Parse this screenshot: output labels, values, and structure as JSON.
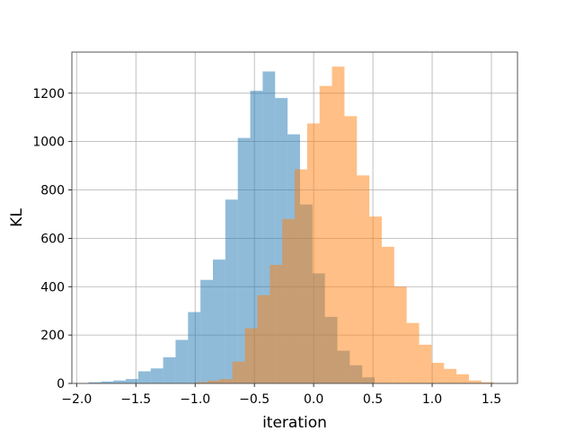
{
  "chart_data": {
    "type": "bar",
    "title": "",
    "xlabel": "iteration",
    "ylabel": "KL",
    "xlim": [
      -2.04,
      1.72
    ],
    "ylim": [
      0,
      1370
    ],
    "grid": true,
    "x_ticks": [
      -2.0,
      -1.5,
      -1.0,
      -0.5,
      0.0,
      0.5,
      1.0,
      1.5
    ],
    "x_tick_labels": [
      "−2.0",
      "−1.5",
      "−1.0",
      "−0.5",
      "0.0",
      "0.5",
      "1.0",
      "1.5"
    ],
    "y_ticks": [
      0,
      200,
      400,
      600,
      800,
      1000,
      1200
    ],
    "y_tick_labels": [
      "0",
      "200",
      "400",
      "600",
      "800",
      "1000",
      "1200"
    ],
    "series": [
      {
        "color": "#1f77b4",
        "opacity": 0.5,
        "bin_width": 0.105,
        "bin_starts": [
          -1.9,
          -1.795,
          -1.69,
          -1.585,
          -1.48,
          -1.375,
          -1.27,
          -1.165,
          -1.06,
          -0.955,
          -0.85,
          -0.745,
          -0.64,
          -0.535,
          -0.43,
          -0.325,
          -0.22,
          -0.115,
          -0.01,
          0.095,
          0.2,
          0.305,
          0.41
        ],
        "values": [
          5,
          8,
          12,
          18,
          50,
          62,
          108,
          180,
          295,
          428,
          512,
          760,
          1015,
          1210,
          1290,
          1180,
          1030,
          740,
          455,
          275,
          135,
          75,
          25
        ]
      },
      {
        "color": "#ff7f0e",
        "opacity": 0.5,
        "bin_width": 0.105,
        "bin_starts": [
          -1.0,
          -0.895,
          -0.79,
          -0.685,
          -0.58,
          -0.475,
          -0.37,
          -0.265,
          -0.16,
          -0.055,
          0.05,
          0.155,
          0.26,
          0.365,
          0.47,
          0.575,
          0.68,
          0.785,
          0.89,
          0.995,
          1.1,
          1.205,
          1.31,
          1.415
        ],
        "values": [
          5,
          12,
          18,
          90,
          228,
          365,
          490,
          680,
          885,
          1075,
          1230,
          1310,
          1105,
          860,
          690,
          565,
          400,
          250,
          160,
          85,
          60,
          38,
          12,
          5
        ]
      }
    ]
  }
}
